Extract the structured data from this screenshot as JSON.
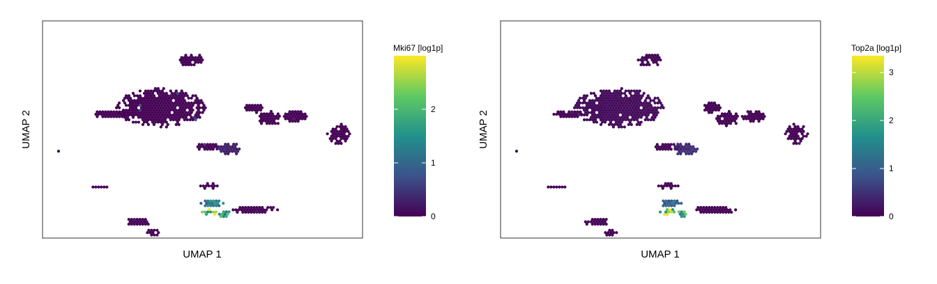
{
  "chart_data": [
    {
      "type": "heatmap",
      "subtype": "umap-hexbin",
      "xlabel": "UMAP 1",
      "ylabel": "UMAP 2",
      "xlim": [
        0,
        100
      ],
      "ylim": [
        0,
        100
      ],
      "axis_ticks": false,
      "grid": false,
      "legend": {
        "placement": "right",
        "title": "Mki67 [log1p]",
        "ticks": [
          0,
          1,
          2
        ],
        "range": [
          0,
          3.0
        ]
      },
      "colormap": [
        "#440154",
        "#3b528b",
        "#21918c",
        "#5ec962",
        "#fde725"
      ],
      "clusters": [
        {
          "x": 46.5,
          "y": 82,
          "w": 8,
          "h": 6,
          "value": 0
        },
        {
          "x": 37,
          "y": 60,
          "w": 28,
          "h": 18,
          "value": 0
        },
        {
          "x": 21,
          "y": 57,
          "w": 10,
          "h": 4,
          "value": 0
        },
        {
          "x": 66,
          "y": 60,
          "w": 6,
          "h": 5,
          "value": 0
        },
        {
          "x": 71,
          "y": 55,
          "w": 8,
          "h": 7,
          "value": 0
        },
        {
          "x": 79,
          "y": 56,
          "w": 8,
          "h": 5,
          "value": 0
        },
        {
          "x": 92.5,
          "y": 48,
          "w": 7,
          "h": 10,
          "value": 0
        },
        {
          "x": 5,
          "y": 40,
          "w": 2,
          "h": 1.5,
          "value": 0
        },
        {
          "x": 52,
          "y": 42,
          "w": 8,
          "h": 4,
          "value": 0
        },
        {
          "x": 58,
          "y": 41,
          "w": 8,
          "h": 6,
          "value": 0.3
        },
        {
          "x": 17.5,
          "y": 23.5,
          "w": 6,
          "h": 2,
          "value": 0
        },
        {
          "x": 52,
          "y": 24,
          "w": 8,
          "h": 2.5,
          "value": 0
        },
        {
          "x": 53,
          "y": 16,
          "w": 7,
          "h": 4,
          "value": 1.4
        },
        {
          "x": 52.5,
          "y": 12,
          "w": 6,
          "h": 3,
          "value": 2.5
        },
        {
          "x": 57,
          "y": 11,
          "w": 4,
          "h": 4,
          "value": 1.8
        },
        {
          "x": 66.5,
          "y": 13,
          "w": 14,
          "h": 4,
          "value": 0
        },
        {
          "x": 30,
          "y": 7.5,
          "w": 8,
          "h": 3.5,
          "value": 0
        },
        {
          "x": 34.5,
          "y": 2.5,
          "w": 5,
          "h": 4,
          "value": 0
        }
      ]
    },
    {
      "type": "heatmap",
      "subtype": "umap-hexbin",
      "xlabel": "UMAP 1",
      "ylabel": "UMAP 2",
      "xlim": [
        0,
        100
      ],
      "ylim": [
        0,
        100
      ],
      "axis_ticks": false,
      "grid": false,
      "legend": {
        "placement": "right",
        "title": "Top2a [log1p]",
        "ticks": [
          0,
          1,
          2,
          3
        ],
        "range": [
          0,
          3.35
        ]
      },
      "colormap": [
        "#440154",
        "#3b528b",
        "#21918c",
        "#5ec962",
        "#fde725"
      ],
      "clusters": [
        {
          "x": 46.5,
          "y": 82,
          "w": 8,
          "h": 6,
          "value": 0
        },
        {
          "x": 37,
          "y": 60,
          "w": 28,
          "h": 18,
          "value": 0.1
        },
        {
          "x": 21,
          "y": 57,
          "w": 10,
          "h": 4,
          "value": 0
        },
        {
          "x": 66,
          "y": 60,
          "w": 6,
          "h": 5,
          "value": 0
        },
        {
          "x": 71,
          "y": 55,
          "w": 8,
          "h": 7,
          "value": 0
        },
        {
          "x": 79,
          "y": 56,
          "w": 8,
          "h": 5,
          "value": 0
        },
        {
          "x": 92.5,
          "y": 48,
          "w": 7,
          "h": 10,
          "value": 0
        },
        {
          "x": 5,
          "y": 40,
          "w": 2,
          "h": 1.5,
          "value": 0
        },
        {
          "x": 52,
          "y": 42,
          "w": 8,
          "h": 4,
          "value": 0
        },
        {
          "x": 58,
          "y": 41,
          "w": 8,
          "h": 6,
          "value": 0.5
        },
        {
          "x": 17.5,
          "y": 23.5,
          "w": 6,
          "h": 2,
          "value": 0
        },
        {
          "x": 52,
          "y": 24,
          "w": 8,
          "h": 2.5,
          "value": 0
        },
        {
          "x": 53,
          "y": 16,
          "w": 7,
          "h": 4,
          "value": 1.2
        },
        {
          "x": 52.5,
          "y": 12,
          "w": 6,
          "h": 3,
          "value": 3.0
        },
        {
          "x": 57,
          "y": 11,
          "w": 4,
          "h": 4,
          "value": 2.2
        },
        {
          "x": 66.5,
          "y": 13,
          "w": 14,
          "h": 4,
          "value": 0
        },
        {
          "x": 30,
          "y": 7.5,
          "w": 8,
          "h": 3.5,
          "value": 0
        },
        {
          "x": 34.5,
          "y": 2.5,
          "w": 5,
          "h": 4,
          "value": 0
        }
      ]
    }
  ]
}
